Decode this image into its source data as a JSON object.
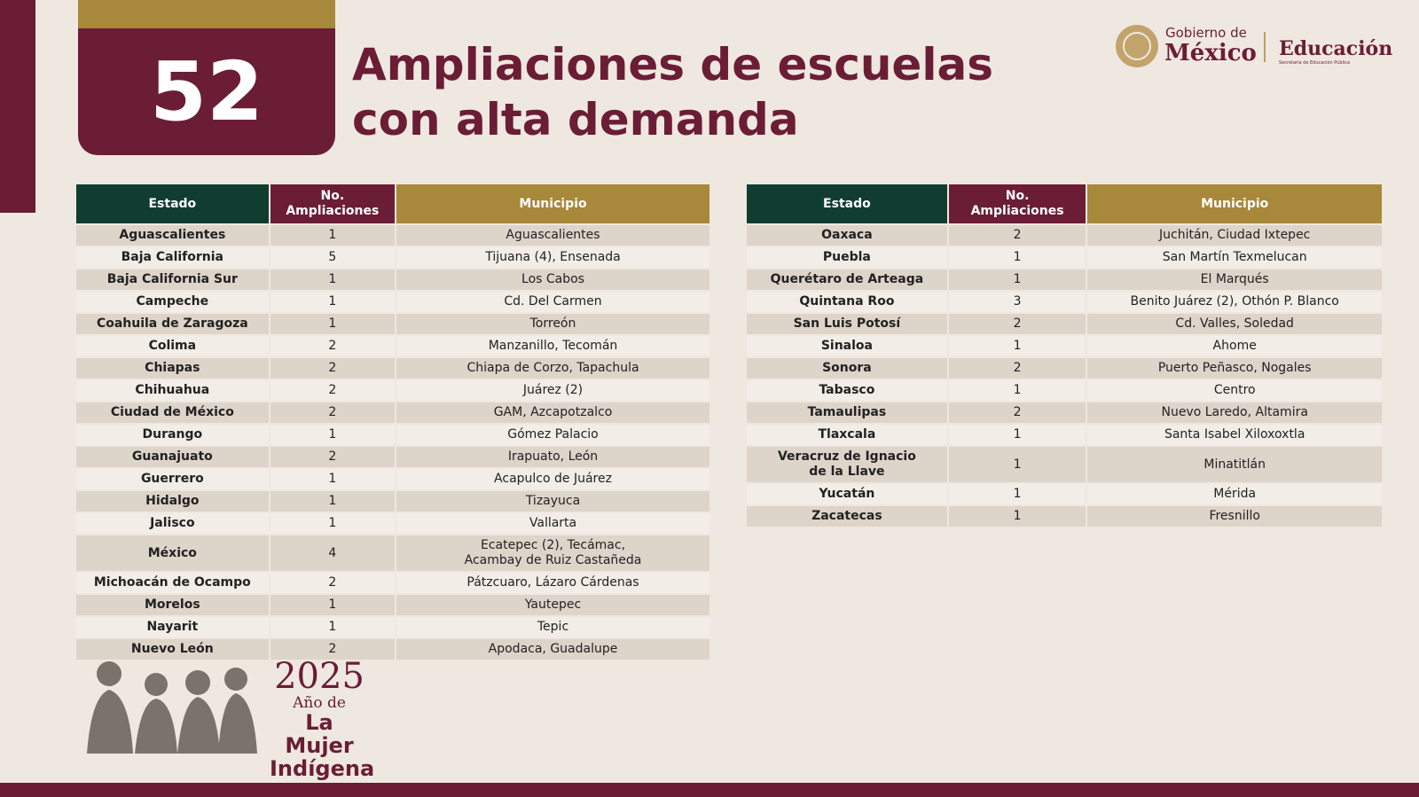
{
  "header": {
    "number": 52,
    "title": [
      "Ampliaciones de escuelas",
      "con alta demanda"
    ]
  },
  "logo": {
    "gobierno": "Gobierno de",
    "mexico": "México",
    "dependencia": "Educación",
    "secretaria": "Secretaría de Educación Pública"
  },
  "tables": [
    {
      "columns": [
        "Estado",
        "No.\nAmpliaciones",
        "Municipio"
      ],
      "rows": [
        [
          "Aguascalientes",
          1,
          "Aguascalientes"
        ],
        [
          "Baja California",
          5,
          "Tijuana (4), Ensenada"
        ],
        [
          "Baja California Sur",
          1,
          "Los Cabos"
        ],
        [
          "Campeche",
          1,
          "Cd. Del Carmen"
        ],
        [
          "Coahuila de Zaragoza",
          1,
          "Torreón"
        ],
        [
          "Colima",
          2,
          "Manzanillo, Tecomán"
        ],
        [
          "Chiapas",
          2,
          "Chiapa de Corzo, Tapachula"
        ],
        [
          "Chihuahua",
          2,
          "Juárez (2)"
        ],
        [
          "Ciudad de México",
          2,
          "GAM, Azcapotzalco"
        ],
        [
          "Durango",
          1,
          "Gómez Palacio"
        ],
        [
          "Guanajuato",
          2,
          "Irapuato, León"
        ],
        [
          "Guerrero",
          1,
          "Acapulco de Juárez"
        ],
        [
          "Hidalgo",
          1,
          "Tizayuca"
        ],
        [
          "Jalisco",
          1,
          "Vallarta"
        ],
        [
          "México",
          4,
          "Ecatepec (2), Tecámac,\nAcambay de Ruiz Castañeda"
        ],
        [
          "Michoacán de Ocampo",
          2,
          "Pátzcuaro, Lázaro Cárdenas"
        ],
        [
          "Morelos",
          1,
          "Yautepec"
        ],
        [
          "Nayarit",
          1,
          "Tepic"
        ],
        [
          "Nuevo León",
          2,
          "Apodaca, Guadalupe"
        ]
      ]
    },
    {
      "columns": [
        "Estado",
        "No.\nAmpliaciones",
        "Municipio"
      ],
      "rows": [
        [
          "Oaxaca",
          2,
          "Juchitán, Ciudad Ixtepec"
        ],
        [
          "Puebla",
          1,
          "San Martín Texmelucan"
        ],
        [
          "Querétaro de Arteaga",
          1,
          "El Marqués"
        ],
        [
          "Quintana Roo",
          3,
          "Benito Juárez (2), Othón P. Blanco"
        ],
        [
          "San Luis Potosí",
          2,
          "Cd. Valles, Soledad"
        ],
        [
          "Sinaloa",
          1,
          "Ahome"
        ],
        [
          "Sonora",
          2,
          "Puerto Peñasco, Nogales"
        ],
        [
          "Tabasco",
          1,
          "Centro"
        ],
        [
          "Tamaulipas",
          2,
          "Nuevo Laredo, Altamira"
        ],
        [
          "Tlaxcala",
          1,
          "Santa Isabel Xiloxoxtla"
        ],
        [
          "Veracruz de Ignacio\nde la Llave",
          1,
          "Minatitlán"
        ],
        [
          "Yucatán",
          1,
          "Mérida"
        ],
        [
          "Zacatecas",
          1,
          "Fresnillo"
        ]
      ]
    }
  ],
  "footer": {
    "year": 2025,
    "line1": "Año de",
    "line2": "La Mujer",
    "line3": "Indígena"
  }
}
